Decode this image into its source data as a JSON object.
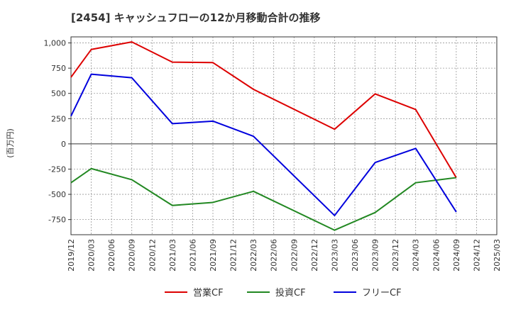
{
  "chart_data": {
    "type": "line",
    "title": "[2454]  キャッシュフローの12か月移動合計の推移",
    "ylabel": "(百万円)",
    "xlabel": "",
    "ylim": [
      -900,
      1060
    ],
    "yticks": [
      1000,
      750,
      500,
      250,
      0,
      -250,
      -500,
      -750
    ],
    "ytick_labels": [
      "1,000",
      "750",
      "500",
      "250",
      "0",
      "-250",
      "-500",
      "-750"
    ],
    "xticks": [
      "2019/12",
      "2020/03",
      "2020/06",
      "2020/09",
      "2020/12",
      "2021/03",
      "2021/06",
      "2021/09",
      "2021/12",
      "2022/03",
      "2022/06",
      "2022/09",
      "2022/12",
      "2023/03",
      "2023/06",
      "2023/09",
      "2023/12",
      "2024/03",
      "2024/06",
      "2024/09",
      "2024/12",
      "2025/03"
    ],
    "grid": true,
    "legend_position": "bottom",
    "series": [
      {
        "name": "営業CF",
        "color": "#dd0000",
        "points": [
          {
            "x": "2019/12",
            "y": 660
          },
          {
            "x": "2020/03",
            "y": 935
          },
          {
            "x": "2020/09",
            "y": 1010
          },
          {
            "x": "2021/03",
            "y": 810
          },
          {
            "x": "2021/09",
            "y": 805
          },
          {
            "x": "2022/03",
            "y": 540
          },
          {
            "x": "2023/03",
            "y": 145
          },
          {
            "x": "2023/09",
            "y": 495
          },
          {
            "x": "2024/03",
            "y": 340
          },
          {
            "x": "2024/09",
            "y": -335
          }
        ]
      },
      {
        "name": "投資CF",
        "color": "#228822",
        "points": [
          {
            "x": "2019/12",
            "y": -385
          },
          {
            "x": "2020/03",
            "y": -245
          },
          {
            "x": "2020/09",
            "y": -355
          },
          {
            "x": "2021/03",
            "y": -610
          },
          {
            "x": "2021/09",
            "y": -580
          },
          {
            "x": "2022/03",
            "y": -470
          },
          {
            "x": "2023/03",
            "y": -855
          },
          {
            "x": "2023/09",
            "y": -680
          },
          {
            "x": "2024/03",
            "y": -385
          },
          {
            "x": "2024/09",
            "y": -335
          }
        ]
      },
      {
        "name": "フリーCF",
        "color": "#0000dd",
        "points": [
          {
            "x": "2019/12",
            "y": 275
          },
          {
            "x": "2020/03",
            "y": 690
          },
          {
            "x": "2020/09",
            "y": 655
          },
          {
            "x": "2021/03",
            "y": 200
          },
          {
            "x": "2021/09",
            "y": 225
          },
          {
            "x": "2022/03",
            "y": 75
          },
          {
            "x": "2023/03",
            "y": -710
          },
          {
            "x": "2023/09",
            "y": -185
          },
          {
            "x": "2024/03",
            "y": -45
          },
          {
            "x": "2024/09",
            "y": -675
          }
        ]
      }
    ]
  }
}
